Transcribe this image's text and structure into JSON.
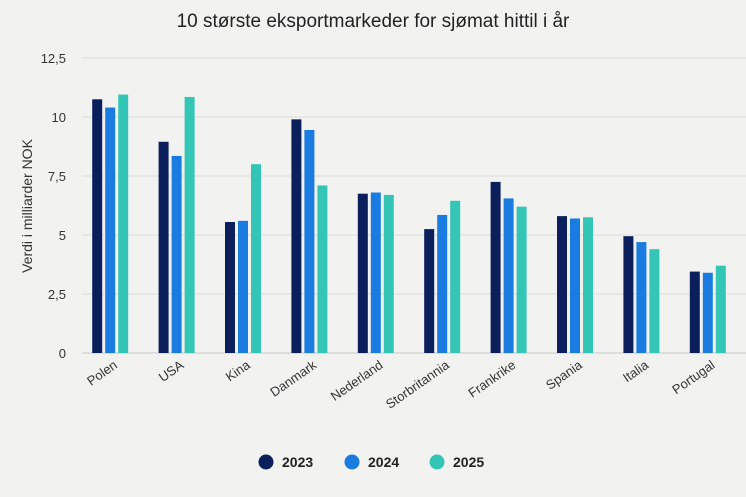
{
  "chart_data": {
    "type": "bar",
    "title": "10 største eksportmarkeder for sjømat hittil i år",
    "xlabel": "",
    "ylabel": "Verdi i milliarder NOK",
    "ylim": [
      0,
      12.5
    ],
    "yticks": [
      "0",
      "2,5",
      "5",
      "7,5",
      "10",
      "12,5"
    ],
    "ytick_values": [
      0,
      2.5,
      5,
      7.5,
      10,
      12.5
    ],
    "grid": true,
    "legend_position": "bottom",
    "categories": [
      "Polen",
      "USA",
      "Kina",
      "Danmark",
      "Nederland",
      "Storbritannia",
      "Frankrike",
      "Spania",
      "Italia",
      "Portugal"
    ],
    "series": [
      {
        "name": "2023",
        "color": "#0b1f5c",
        "values": [
          10.75,
          8.95,
          5.55,
          9.9,
          6.75,
          5.25,
          7.25,
          5.8,
          4.95,
          3.45
        ]
      },
      {
        "name": "2024",
        "color": "#1a7be0",
        "values": [
          10.4,
          8.35,
          5.6,
          9.45,
          6.8,
          5.85,
          6.55,
          5.7,
          4.7,
          3.4
        ]
      },
      {
        "name": "2025",
        "color": "#33c5b5",
        "values": [
          10.95,
          10.85,
          8.0,
          7.1,
          6.7,
          6.45,
          6.2,
          5.75,
          4.4,
          3.7
        ]
      }
    ]
  }
}
